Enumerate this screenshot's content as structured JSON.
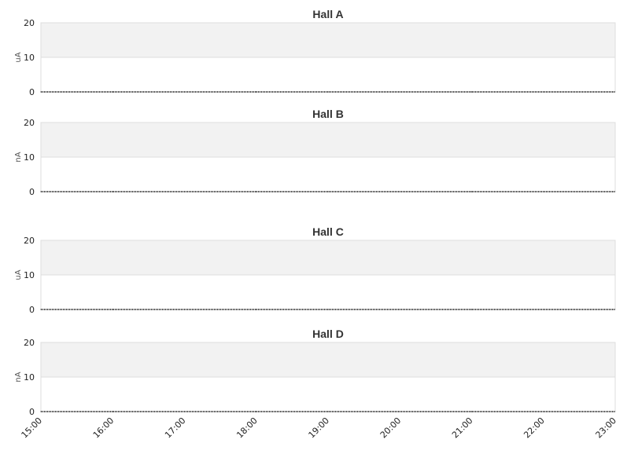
{
  "chart_data": [
    {
      "type": "line",
      "title": "Hall A",
      "ylabel": "uA",
      "ylim": [
        0,
        20
      ],
      "yticks": [
        "0",
        "10",
        "20"
      ],
      "band_above": 10,
      "x": [
        "15:00",
        "16:00",
        "17:00",
        "18:00",
        "19:00",
        "20:00",
        "21:00",
        "22:00",
        "23:00"
      ],
      "series": [
        {
          "values": [
            0,
            0,
            0,
            0,
            0,
            0,
            0,
            0,
            0
          ]
        }
      ]
    },
    {
      "type": "line",
      "title": "Hall B",
      "ylabel": "nA",
      "ylim": [
        0,
        20
      ],
      "yticks": [
        "0",
        "10",
        "20"
      ],
      "band_above": 10,
      "x": [
        "15:00",
        "16:00",
        "17:00",
        "18:00",
        "19:00",
        "20:00",
        "21:00",
        "22:00",
        "23:00"
      ],
      "series": [
        {
          "values": [
            0,
            0,
            0,
            0,
            0,
            0,
            0,
            0,
            0
          ]
        }
      ]
    },
    {
      "type": "line",
      "title": "Hall C",
      "ylabel": "uA",
      "ylim": [
        0,
        20
      ],
      "yticks": [
        "0",
        "10",
        "20"
      ],
      "band_above": 10,
      "x": [
        "15:00",
        "16:00",
        "17:00",
        "18:00",
        "19:00",
        "20:00",
        "21:00",
        "22:00",
        "23:00"
      ],
      "series": [
        {
          "values": [
            0,
            0,
            0,
            0,
            0,
            0,
            0,
            0,
            0
          ]
        }
      ]
    },
    {
      "type": "line",
      "title": "Hall D",
      "ylabel": "nA",
      "ylim": [
        0,
        20
      ],
      "yticks": [
        "0",
        "10",
        "20"
      ],
      "band_above": 10,
      "x": [
        "15:00",
        "16:00",
        "17:00",
        "18:00",
        "19:00",
        "20:00",
        "21:00",
        "22:00",
        "23:00"
      ],
      "series": [
        {
          "values": [
            0,
            0,
            0,
            0,
            0,
            0,
            0,
            0,
            0
          ]
        }
      ]
    }
  ],
  "xaxis": {
    "tick_labels": [
      "15:00",
      "16:00",
      "17:00",
      "18:00",
      "19:00",
      "20:00",
      "21:00",
      "22:00",
      "23:00"
    ]
  },
  "colors": {
    "band": "#f2f2f2",
    "grid": "#dddddd",
    "series": "#333333"
  }
}
